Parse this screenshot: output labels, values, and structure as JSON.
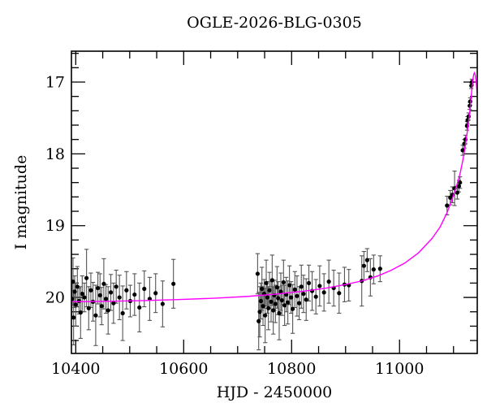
{
  "title": "OGLE-2026-BLG-0305",
  "chart_data": {
    "type": "scatter",
    "title": "OGLE-2026-BLG-0305",
    "xlabel": "HJD - 2450000",
    "ylabel": "I magnitude",
    "xlim": [
      10392,
      11144
    ],
    "ylim": [
      16.57,
      20.78
    ],
    "y_inverted": true,
    "grid": false,
    "x_ticks_major": [
      10400,
      10600,
      10800,
      11000
    ],
    "x_minor_step": 50,
    "y_ticks_major": [
      17,
      18,
      19,
      20
    ],
    "y_minor_step": 0.2,
    "colors": {
      "model_curve": "#ff00ff",
      "data_points": "#000000",
      "error_bars": "#555555",
      "axes": "#000000"
    },
    "points_format": [
      "hjd_minus_2450000",
      "i_magnitude",
      "error"
    ],
    "points": [
      [
        10393,
        20.02,
        0.25
      ],
      [
        10395,
        19.78,
        0.33
      ],
      [
        10396,
        20.28,
        0.38
      ],
      [
        10398,
        19.92,
        0.22
      ],
      [
        10400,
        20.1,
        0.3
      ],
      [
        10403,
        19.85,
        0.28
      ],
      [
        10406,
        20.05,
        0.18
      ],
      [
        10409,
        20.21,
        0.36
      ],
      [
        10412,
        19.95,
        0.25
      ],
      [
        10416,
        20.0,
        0.2
      ],
      [
        10420,
        19.73,
        0.4
      ],
      [
        10424,
        20.15,
        0.3
      ],
      [
        10428,
        19.9,
        0.24
      ],
      [
        10432,
        20.06,
        0.27
      ],
      [
        10437,
        20.25,
        0.42
      ],
      [
        10441,
        19.87,
        0.22
      ],
      [
        10445,
        19.97,
        0.3
      ],
      [
        10448,
        20.12,
        0.26
      ],
      [
        10452,
        19.81,
        0.35
      ],
      [
        10456,
        20.02,
        0.2
      ],
      [
        10460,
        20.18,
        0.33
      ],
      [
        10465,
        19.93,
        0.25
      ],
      [
        10470,
        20.08,
        0.28
      ],
      [
        10475,
        19.85,
        0.23
      ],
      [
        10481,
        20.0,
        0.31
      ],
      [
        10487,
        20.22,
        0.38
      ],
      [
        10494,
        19.9,
        0.26
      ],
      [
        10501,
        20.05,
        0.22
      ],
      [
        10509,
        19.96,
        0.29
      ],
      [
        10518,
        20.14,
        0.34
      ],
      [
        10527,
        19.88,
        0.25
      ],
      [
        10537,
        20.02,
        0.3
      ],
      [
        10548,
        19.94,
        0.27
      ],
      [
        10561,
        20.09,
        0.32
      ],
      [
        10581,
        19.81,
        0.34
      ],
      [
        10737,
        19.67,
        0.28
      ],
      [
        10739,
        20.33,
        0.4
      ],
      [
        10741,
        20.2,
        0.35
      ],
      [
        10743,
        20.05,
        0.25
      ],
      [
        10745,
        19.88,
        0.3
      ],
      [
        10747,
        20.12,
        0.27
      ],
      [
        10749,
        19.95,
        0.2
      ],
      [
        10751,
        20.25,
        0.38
      ],
      [
        10753,
        19.8,
        0.32
      ],
      [
        10755,
        20.0,
        0.22
      ],
      [
        10757,
        20.15,
        0.3
      ],
      [
        10759,
        19.9,
        0.25
      ],
      [
        10762,
        20.06,
        0.28
      ],
      [
        10764,
        19.76,
        0.35
      ],
      [
        10766,
        20.18,
        0.33
      ],
      [
        10768,
        19.97,
        0.21
      ],
      [
        10770,
        20.09,
        0.26
      ],
      [
        10773,
        19.86,
        0.29
      ],
      [
        10775,
        20.01,
        0.23
      ],
      [
        10777,
        20.22,
        0.37
      ],
      [
        10780,
        19.92,
        0.26
      ],
      [
        10782,
        20.04,
        0.21
      ],
      [
        10785,
        19.79,
        0.31
      ],
      [
        10787,
        20.11,
        0.28
      ],
      [
        10790,
        19.96,
        0.24
      ],
      [
        10793,
        20.07,
        0.3
      ],
      [
        10796,
        19.83,
        0.27
      ],
      [
        10799,
        20.0,
        0.22
      ],
      [
        10802,
        20.16,
        0.34
      ],
      [
        10806,
        19.89,
        0.25
      ],
      [
        10810,
        19.98,
        0.28
      ],
      [
        10814,
        20.08,
        0.23
      ],
      [
        10818,
        19.85,
        0.3
      ],
      [
        10822,
        19.95,
        0.26
      ],
      [
        10827,
        20.03,
        0.29
      ],
      [
        10832,
        19.8,
        0.25
      ],
      [
        10838,
        19.91,
        0.27
      ],
      [
        10845,
        19.99,
        0.24
      ],
      [
        10852,
        19.84,
        0.28
      ],
      [
        10860,
        19.93,
        0.26
      ],
      [
        10869,
        19.78,
        0.3
      ],
      [
        10878,
        19.87,
        0.25
      ],
      [
        10888,
        19.94,
        0.28
      ],
      [
        10898,
        19.82,
        0.24
      ],
      [
        10906,
        19.83,
        0.22
      ],
      [
        10930,
        19.77,
        0.35
      ],
      [
        10934,
        19.56,
        0.2
      ],
      [
        10940,
        19.48,
        0.16
      ],
      [
        10946,
        19.72,
        0.26
      ],
      [
        10952,
        19.61,
        0.2
      ],
      [
        10964,
        19.6,
        0.18
      ],
      [
        11088,
        18.72,
        0.13
      ],
      [
        11094,
        18.61,
        0.1
      ],
      [
        11098,
        18.57,
        0.11
      ],
      [
        11102,
        18.48,
        0.24
      ],
      [
        11107,
        18.54,
        0.09
      ],
      [
        11110,
        18.45,
        0.08
      ],
      [
        11112,
        18.4,
        0.08
      ],
      [
        11117,
        17.95,
        0.07
      ],
      [
        11120,
        17.86,
        0.06
      ],
      [
        11122,
        17.8,
        0.06
      ],
      [
        11125,
        17.61,
        0.06
      ],
      [
        11126,
        17.53,
        0.05
      ],
      [
        11128,
        17.48,
        0.05
      ],
      [
        11130,
        17.33,
        0.05
      ],
      [
        11131,
        17.27,
        0.05
      ],
      [
        11133,
        17.05,
        0.04
      ],
      [
        11134,
        17.0,
        0.04
      ]
    ],
    "model_curve": [
      [
        10392,
        20.06
      ],
      [
        10450,
        20.055
      ],
      [
        10520,
        20.045
      ],
      [
        10590,
        20.03
      ],
      [
        10660,
        20.01
      ],
      [
        10720,
        19.985
      ],
      [
        10770,
        19.955
      ],
      [
        10820,
        19.915
      ],
      [
        10860,
        19.875
      ],
      [
        10900,
        19.82
      ],
      [
        10930,
        19.77
      ],
      [
        10960,
        19.7
      ],
      [
        10985,
        19.62
      ],
      [
        11010,
        19.52
      ],
      [
        11035,
        19.38
      ],
      [
        11060,
        19.18
      ],
      [
        11075,
        19.02
      ],
      [
        11088,
        18.82
      ],
      [
        11098,
        18.62
      ],
      [
        11106,
        18.44
      ],
      [
        11112,
        18.28
      ],
      [
        11117,
        18.1
      ],
      [
        11121,
        17.93
      ],
      [
        11125,
        17.72
      ],
      [
        11128,
        17.55
      ],
      [
        11130,
        17.42
      ],
      [
        11132,
        17.27
      ],
      [
        11134,
        17.1
      ],
      [
        11136,
        16.96
      ],
      [
        11137.5,
        16.89
      ],
      [
        11139,
        16.87
      ],
      [
        11140.5,
        16.91
      ],
      [
        11142,
        17.0
      ],
      [
        11143.5,
        17.13
      ],
      [
        11144,
        17.18
      ]
    ]
  }
}
